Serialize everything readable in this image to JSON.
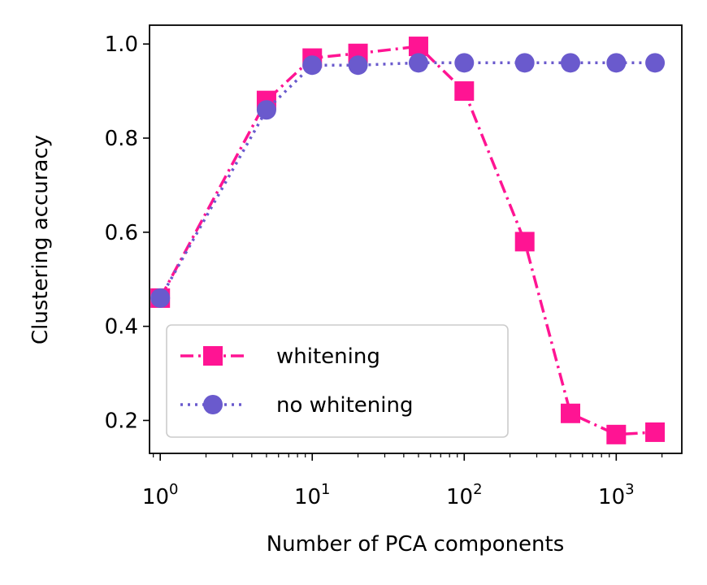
{
  "chart_data": {
    "type": "line",
    "title": "",
    "xlabel": "Number of PCA components",
    "ylabel": "Clustering accuracy",
    "xscale": "log",
    "xlim": [
      0.85,
      2700
    ],
    "ylim": [
      0.13,
      1.04
    ],
    "xticks": [
      {
        "value": 1,
        "base": "10",
        "exp": "0"
      },
      {
        "value": 10,
        "base": "10",
        "exp": "1"
      },
      {
        "value": 100,
        "base": "10",
        "exp": "2"
      },
      {
        "value": 1000,
        "base": "10",
        "exp": "3"
      }
    ],
    "yticks": [
      {
        "value": 0.2,
        "label": "0.2"
      },
      {
        "value": 0.4,
        "label": "0.4"
      },
      {
        "value": 0.6,
        "label": "0.6"
      },
      {
        "value": 0.8,
        "label": "0.8"
      },
      {
        "value": 1.0,
        "label": "1.0"
      }
    ],
    "grid": false,
    "legend_position": "lower-left",
    "series": [
      {
        "name": "whitening",
        "color": "#ff1493",
        "marker": "square",
        "line_style": "dash-dot",
        "x": [
          1,
          5,
          10,
          20,
          50,
          100,
          250,
          500,
          1000,
          1800
        ],
        "y": [
          0.46,
          0.88,
          0.97,
          0.98,
          0.995,
          0.9,
          0.58,
          0.215,
          0.17,
          0.175
        ]
      },
      {
        "name": "no whitening",
        "color": "#6a5acd",
        "marker": "circle",
        "line_style": "dotted",
        "x": [
          1,
          5,
          10,
          20,
          50,
          100,
          250,
          500,
          1000,
          1800
        ],
        "y": [
          0.46,
          0.86,
          0.955,
          0.955,
          0.96,
          0.96,
          0.96,
          0.96,
          0.96,
          0.96
        ]
      }
    ]
  }
}
